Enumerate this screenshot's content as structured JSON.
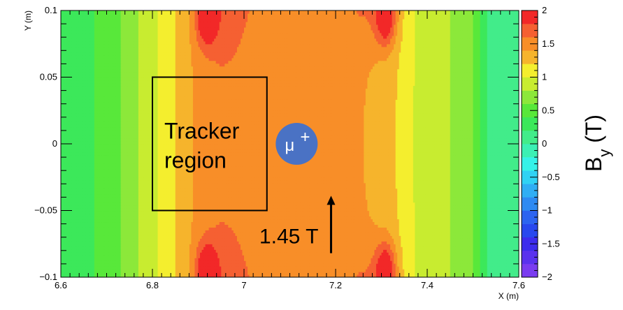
{
  "chart_data": {
    "type": "heatmap",
    "title": "",
    "xlabel": "X (m)",
    "ylabel": "Y (m)",
    "xlim": [
      6.6,
      7.6
    ],
    "ylim": [
      -0.1,
      0.1
    ],
    "x_ticks": [
      6.6,
      6.8,
      7,
      7.2,
      7.4,
      7.6
    ],
    "x_tick_labels": [
      "6.6",
      "6.8",
      "7",
      "7.2",
      "7.4",
      "7.6"
    ],
    "y_ticks": [
      -0.1,
      -0.05,
      0,
      0.05,
      0.1
    ],
    "y_tick_labels": [
      "−0.1",
      "−0.05",
      "0",
      "0.05",
      "0.1"
    ],
    "colorbar": {
      "label_main": "B",
      "label_sub": "y",
      "label_unit": "(T)",
      "zlim": [
        -2,
        2
      ],
      "ticks": [
        -2,
        -1.5,
        -1,
        -0.5,
        0,
        0.5,
        1,
        1.5,
        2
      ],
      "tick_labels": [
        "−2",
        "−1.5",
        "−1",
        "−0.5",
        "0",
        "0.5",
        "1",
        "1.5",
        "2"
      ],
      "levels": 20,
      "colors": [
        "#7a3cf0",
        "#5a32ee",
        "#3c2ced",
        "#2848ee",
        "#2c64f0",
        "#2e8af2",
        "#30aef4",
        "#30d2f4",
        "#36f2e8",
        "#3cf0b4",
        "#42ec8a",
        "#3ce85a",
        "#58e83a",
        "#8ce83a",
        "#c8ec30",
        "#f4ee2e",
        "#f6b42c",
        "#f88e28",
        "#f56032",
        "#f22828"
      ]
    },
    "field_profile_x": [
      6.6,
      6.66,
      6.72,
      6.76,
      6.8,
      6.84,
      6.87,
      6.9,
      6.95,
      7.0,
      7.1,
      7.2,
      7.25,
      7.28,
      7.31,
      7.34,
      7.38,
      7.42,
      7.46,
      7.5,
      7.54,
      7.6
    ],
    "field_profile_By": [
      0.2,
      0.35,
      0.55,
      0.75,
      0.95,
      1.15,
      1.3,
      1.45,
      1.55,
      1.55,
      1.55,
      1.55,
      1.55,
      1.5,
      1.35,
      1.15,
      0.95,
      0.85,
      0.78,
      0.6,
      0.1,
      0.0
    ],
    "annotations": {
      "tracker_line1": "Tracker",
      "tracker_line2": "region",
      "tracker_box_x": [
        6.8,
        7.05
      ],
      "tracker_box_y": [
        -0.05,
        0.05
      ],
      "particle_label": "μ",
      "particle_charge": "+",
      "particle_color": "#4a72c4",
      "particle_x": 7.115,
      "particle_y": 0.0,
      "field_label": "1.45 T",
      "field_arrow_x": 7.19,
      "field_arrow_y": [
        -0.082,
        -0.04
      ]
    }
  }
}
